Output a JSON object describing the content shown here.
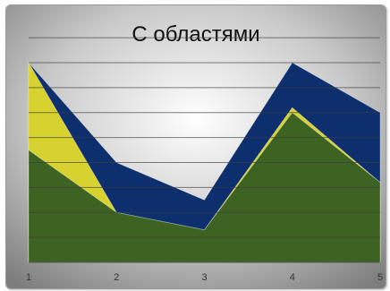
{
  "chart_data": {
    "type": "area",
    "title": "С областями",
    "xlabel": "",
    "ylabel": "",
    "categories": [
      "1",
      "2",
      "3",
      "4",
      "5"
    ],
    "ylim": [
      0,
      8
    ],
    "grid": true,
    "legend": "none",
    "series": [
      {
        "values": [
          8,
          4,
          2.5,
          8,
          6
        ],
        "color": "#0e2f6e"
      },
      {
        "values": [
          8,
          2,
          1.3,
          6.2,
          3.2
        ],
        "color": "#d7d230"
      },
      {
        "values": [
          4.5,
          2,
          1.3,
          6,
          3.2
        ],
        "color": "#3d6322"
      }
    ]
  }
}
